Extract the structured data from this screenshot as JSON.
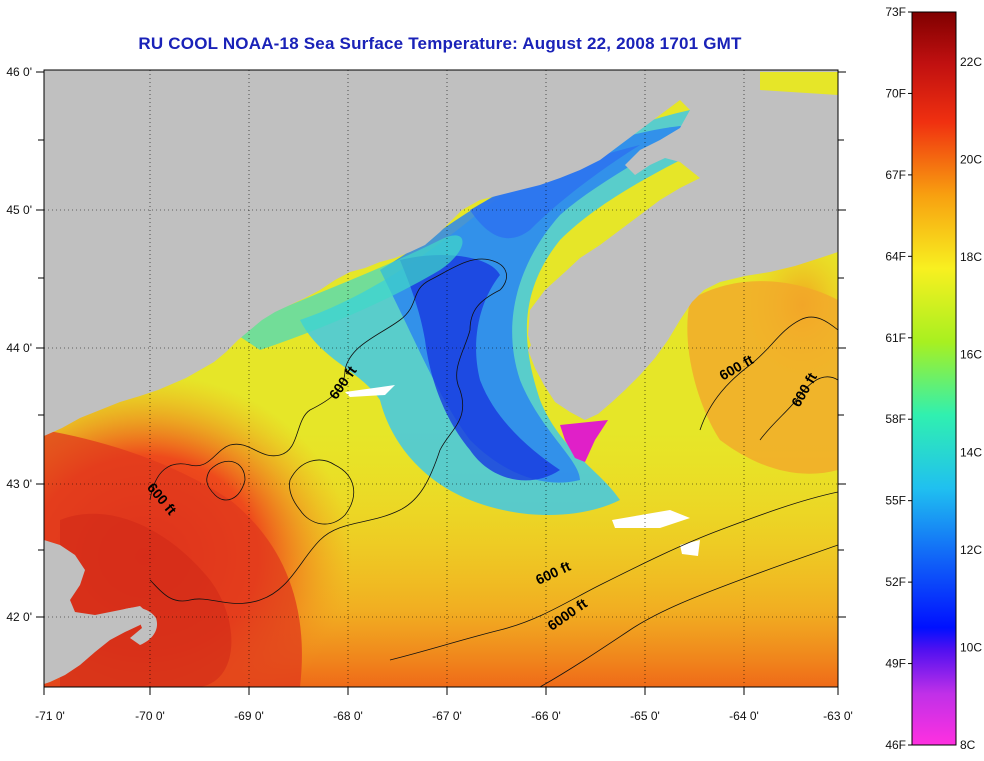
{
  "title": "RU COOL  NOAA-18  Sea Surface Temperature:  August 22, 2008 1701 GMT",
  "map": {
    "lon_range": [
      -71,
      -63
    ],
    "lat_range": [
      41.5,
      46
    ],
    "lon_ticks": [
      "-71 0'",
      "-70 0'",
      "-69 0'",
      "-68 0'",
      "-67 0'",
      "-66 0'",
      "-65 0'",
      "-64 0'",
      "-63 0'"
    ],
    "lat_ticks": [
      "46 0'",
      "45 0'",
      "44 0'",
      "43 0'",
      "42 0'"
    ],
    "isobath_labels": [
      {
        "text": "600 ft",
        "lon": -67.95,
        "lat": 43.7,
        "rotate": -55
      },
      {
        "text": "600 ft",
        "lon": -69.85,
        "lat": 42.85,
        "rotate": 50
      },
      {
        "text": "600 ft",
        "lon": -64.0,
        "lat": 43.8,
        "rotate": -30
      },
      {
        "text": "600 ft",
        "lon": -63.3,
        "lat": 43.65,
        "rotate": -60
      },
      {
        "text": "600 ft",
        "lon": -65.85,
        "lat": 42.3,
        "rotate": -25
      },
      {
        "text": "6000 ft",
        "lon": -65.7,
        "lat": 42.0,
        "rotate": -35
      }
    ],
    "colors": {
      "land": "#c0c0c0",
      "grid": "#000000"
    }
  },
  "colorbar": {
    "fahrenheit": [
      "73F",
      "70F",
      "67F",
      "64F",
      "61F",
      "58F",
      "55F",
      "52F",
      "49F",
      "46F"
    ],
    "celsius": [
      "22C",
      "20C",
      "18C",
      "16C",
      "14C",
      "12C",
      "10C",
      "8C"
    ]
  }
}
